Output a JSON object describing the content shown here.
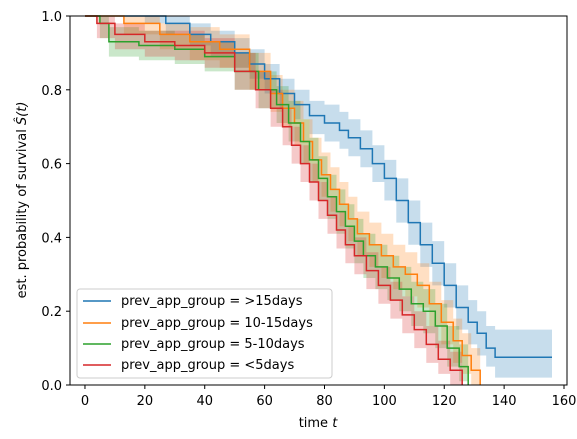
{
  "chart_data": {
    "type": "line",
    "step": true,
    "confidence_bands": true,
    "xlabel_text": "time ",
    "xlabel_var": "t",
    "ylabel_text": "est. probability of survival ",
    "ylabel_math": "Ŝ(t)",
    "xlim": [
      -5,
      161
    ],
    "ylim": [
      0,
      1
    ],
    "xticks": [
      0,
      20,
      40,
      60,
      80,
      100,
      120,
      140,
      160
    ],
    "yticks": [
      0.0,
      0.2,
      0.4,
      0.6,
      0.8,
      1.0
    ],
    "grid": false,
    "legend_position": "lower-left",
    "series": [
      {
        "name": "prev_app_group = >15days",
        "color": "#1f77b4",
        "x": [
          0,
          6,
          20,
          27,
          35,
          42,
          50,
          55,
          60,
          65,
          70,
          75,
          80,
          85,
          88,
          92,
          96,
          100,
          104,
          108,
          112,
          116,
          120,
          124,
          128,
          131,
          134,
          137,
          156
        ],
        "y": [
          1.0,
          1.0,
          1.0,
          0.98,
          0.95,
          0.93,
          0.9,
          0.87,
          0.83,
          0.79,
          0.76,
          0.73,
          0.71,
          0.69,
          0.67,
          0.64,
          0.6,
          0.56,
          0.5,
          0.44,
          0.38,
          0.33,
          0.27,
          0.21,
          0.17,
          0.14,
          0.1,
          0.075,
          0.075
        ],
        "lower": [
          1.0,
          1.0,
          0.98,
          0.95,
          0.92,
          0.89,
          0.86,
          0.83,
          0.79,
          0.75,
          0.72,
          0.68,
          0.66,
          0.64,
          0.62,
          0.59,
          0.55,
          0.5,
          0.44,
          0.38,
          0.32,
          0.27,
          0.21,
          0.15,
          0.11,
          0.08,
          0.05,
          0.02,
          0.02
        ],
        "upper": [
          1.0,
          1.0,
          1.0,
          1.0,
          0.98,
          0.96,
          0.94,
          0.91,
          0.87,
          0.83,
          0.8,
          0.77,
          0.76,
          0.74,
          0.72,
          0.69,
          0.65,
          0.61,
          0.56,
          0.5,
          0.44,
          0.39,
          0.33,
          0.27,
          0.23,
          0.2,
          0.16,
          0.15,
          0.15
        ]
      },
      {
        "name": "prev_app_group = 10-15days",
        "color": "#ff7f0e",
        "x": [
          0,
          9,
          13,
          25,
          35,
          45,
          55,
          62,
          66,
          70,
          73,
          76,
          79,
          82,
          85,
          88,
          91,
          95,
          99,
          103,
          107,
          111,
          115,
          119,
          123,
          126,
          129,
          132
        ],
        "y": [
          1.0,
          1.0,
          0.98,
          0.95,
          0.93,
          0.91,
          0.85,
          0.79,
          0.75,
          0.71,
          0.66,
          0.61,
          0.57,
          0.53,
          0.49,
          0.45,
          0.41,
          0.38,
          0.35,
          0.32,
          0.3,
          0.27,
          0.22,
          0.17,
          0.12,
          0.08,
          0.04,
          0.0
        ],
        "lower": [
          1.0,
          1.0,
          0.95,
          0.91,
          0.88,
          0.86,
          0.8,
          0.74,
          0.7,
          0.65,
          0.6,
          0.55,
          0.51,
          0.47,
          0.43,
          0.39,
          0.35,
          0.32,
          0.29,
          0.26,
          0.24,
          0.21,
          0.16,
          0.11,
          0.06,
          0.03,
          0.0,
          0.0
        ],
        "upper": [
          1.0,
          1.0,
          1.0,
          0.98,
          0.97,
          0.95,
          0.9,
          0.84,
          0.8,
          0.77,
          0.72,
          0.67,
          0.63,
          0.59,
          0.55,
          0.51,
          0.47,
          0.44,
          0.41,
          0.38,
          0.36,
          0.33,
          0.28,
          0.23,
          0.18,
          0.14,
          0.1,
          0.06
        ]
      },
      {
        "name": "prev_app_group = 5-10days",
        "color": "#2ca02c",
        "x": [
          0,
          5,
          8,
          18,
          30,
          40,
          50,
          58,
          64,
          68,
          72,
          75,
          78,
          81,
          84,
          87,
          90,
          93,
          97,
          101,
          105,
          109,
          113,
          117,
          121,
          125,
          128
        ],
        "y": [
          1.0,
          0.98,
          0.93,
          0.92,
          0.91,
          0.89,
          0.85,
          0.8,
          0.76,
          0.71,
          0.66,
          0.61,
          0.56,
          0.51,
          0.47,
          0.43,
          0.39,
          0.35,
          0.32,
          0.29,
          0.26,
          0.22,
          0.2,
          0.16,
          0.1,
          0.05,
          0.0
        ],
        "lower": [
          1.0,
          0.94,
          0.89,
          0.88,
          0.87,
          0.85,
          0.8,
          0.75,
          0.71,
          0.66,
          0.6,
          0.55,
          0.5,
          0.45,
          0.41,
          0.37,
          0.33,
          0.29,
          0.26,
          0.23,
          0.2,
          0.16,
          0.14,
          0.1,
          0.05,
          0.01,
          0.0
        ],
        "upper": [
          1.0,
          1.0,
          0.97,
          0.96,
          0.95,
          0.93,
          0.9,
          0.85,
          0.81,
          0.77,
          0.72,
          0.67,
          0.62,
          0.57,
          0.53,
          0.49,
          0.45,
          0.41,
          0.38,
          0.35,
          0.32,
          0.28,
          0.26,
          0.22,
          0.16,
          0.11,
          0.06
        ]
      },
      {
        "name": "prev_app_group = <5days",
        "color": "#d62728",
        "x": [
          0,
          4,
          10,
          20,
          30,
          40,
          50,
          57,
          62,
          66,
          69,
          72,
          75,
          78,
          81,
          84,
          87,
          90,
          94,
          98,
          102,
          106,
          110,
          114,
          118,
          122,
          126
        ],
        "y": [
          1.0,
          0.98,
          0.95,
          0.93,
          0.92,
          0.9,
          0.85,
          0.8,
          0.75,
          0.7,
          0.65,
          0.6,
          0.55,
          0.5,
          0.46,
          0.42,
          0.38,
          0.35,
          0.31,
          0.27,
          0.23,
          0.19,
          0.15,
          0.11,
          0.07,
          0.04,
          0.0
        ],
        "lower": [
          1.0,
          0.94,
          0.91,
          0.89,
          0.88,
          0.86,
          0.8,
          0.75,
          0.7,
          0.65,
          0.6,
          0.55,
          0.5,
          0.45,
          0.41,
          0.37,
          0.33,
          0.3,
          0.26,
          0.22,
          0.18,
          0.14,
          0.1,
          0.06,
          0.03,
          0.0,
          0.0
        ],
        "upper": [
          1.0,
          1.0,
          0.98,
          0.96,
          0.96,
          0.94,
          0.9,
          0.85,
          0.8,
          0.75,
          0.7,
          0.65,
          0.6,
          0.55,
          0.51,
          0.47,
          0.43,
          0.4,
          0.36,
          0.32,
          0.28,
          0.24,
          0.2,
          0.16,
          0.12,
          0.09,
          0.05
        ]
      }
    ]
  }
}
